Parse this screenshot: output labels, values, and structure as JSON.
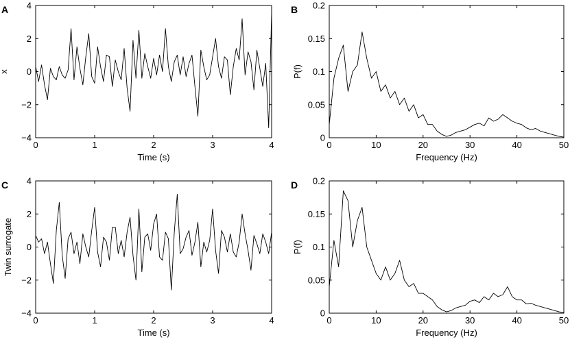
{
  "chart_data": [
    {
      "panel": "A",
      "type": "line",
      "xlabel": "Time (s)",
      "ylabel": "x",
      "xlim": [
        0,
        4
      ],
      "ylim": [
        -4,
        4
      ],
      "xticks": [
        0,
        1,
        2,
        3,
        4
      ],
      "yticks": [
        -4,
        -2,
        0,
        2,
        4
      ],
      "series": [
        {
          "color": "#000000",
          "x": [
            0,
            0.05,
            0.1,
            0.15,
            0.2,
            0.25,
            0.3,
            0.35,
            0.4,
            0.45,
            0.5,
            0.55,
            0.6,
            0.65,
            0.7,
            0.75,
            0.8,
            0.85,
            0.9,
            0.95,
            1.0,
            1.05,
            1.1,
            1.15,
            1.2,
            1.25,
            1.3,
            1.35,
            1.4,
            1.45,
            1.5,
            1.55,
            1.6,
            1.65,
            1.7,
            1.75,
            1.8,
            1.85,
            1.9,
            1.95,
            2.0,
            2.05,
            2.1,
            2.15,
            2.2,
            2.25,
            2.3,
            2.35,
            2.4,
            2.45,
            2.5,
            2.55,
            2.6,
            2.65,
            2.7,
            2.75,
            2.8,
            2.85,
            2.9,
            2.95,
            3.0,
            3.05,
            3.1,
            3.15,
            3.2,
            3.25,
            3.3,
            3.35,
            3.4,
            3.45,
            3.5,
            3.55,
            3.6,
            3.65,
            3.7,
            3.75,
            3.8,
            3.85,
            3.9,
            3.95,
            4.0
          ],
          "y": [
            0.3,
            -0.6,
            0.4,
            -0.8,
            -1.7,
            0.2,
            -0.3,
            -0.5,
            0.3,
            -0.2,
            -0.4,
            0.1,
            2.6,
            -0.5,
            1.5,
            0.2,
            -0.8,
            0.9,
            2.3,
            -0.3,
            -0.7,
            1.5,
            0.3,
            -0.6,
            1.0,
            0.9,
            -0.9,
            0.7,
            0.0,
            -0.5,
            1.4,
            -1.0,
            -2.4,
            1.9,
            -0.4,
            2.5,
            -0.4,
            1.1,
            0.3,
            -0.4,
            0.8,
            -0.2,
            1.0,
            0.0,
            2.6,
            0.3,
            -0.6,
            0.6,
            1.0,
            -0.2,
            0.9,
            -0.3,
            0.5,
            1.0,
            -0.9,
            -2.7,
            1.3,
            0.3,
            -0.5,
            -0.2,
            0.9,
            2.0,
            0.3,
            -0.4,
            0.9,
            0.7,
            -1.4,
            0.3,
            1.4,
            0.7,
            3.2,
            -0.2,
            1.2,
            0.6,
            -1.1,
            1.3,
            0.2,
            -0.9,
            0.5,
            -3.4,
            3.6
          ]
        }
      ]
    },
    {
      "panel": "B",
      "type": "line",
      "xlabel": "Frequency (Hz)",
      "ylabel": "P(f)",
      "xlim": [
        0,
        50
      ],
      "ylim": [
        0,
        0.2
      ],
      "xticks": [
        0,
        10,
        20,
        30,
        40,
        50
      ],
      "yticks": [
        0,
        0.05,
        0.1,
        0.15,
        0.2
      ],
      "series": [
        {
          "color": "#000000",
          "x": [
            0,
            1,
            2,
            3,
            4,
            5,
            6,
            7,
            8,
            9,
            10,
            11,
            12,
            13,
            14,
            15,
            16,
            17,
            18,
            19,
            20,
            21,
            22,
            23,
            24,
            25,
            26,
            27,
            28,
            29,
            30,
            31,
            32,
            33,
            34,
            35,
            36,
            37,
            38,
            39,
            40,
            41,
            42,
            43,
            44,
            45,
            46,
            47,
            48,
            49,
            50
          ],
          "y": [
            0.02,
            0.09,
            0.12,
            0.14,
            0.07,
            0.1,
            0.11,
            0.16,
            0.12,
            0.09,
            0.1,
            0.07,
            0.08,
            0.06,
            0.07,
            0.05,
            0.06,
            0.04,
            0.05,
            0.03,
            0.035,
            0.02,
            0.02,
            0.01,
            0.005,
            0.002,
            0.004,
            0.008,
            0.01,
            0.012,
            0.016,
            0.02,
            0.022,
            0.018,
            0.03,
            0.025,
            0.028,
            0.035,
            0.03,
            0.025,
            0.022,
            0.02,
            0.015,
            0.012,
            0.014,
            0.01,
            0.008,
            0.006,
            0.004,
            0.002,
            0.001
          ]
        }
      ]
    },
    {
      "panel": "C",
      "type": "line",
      "xlabel": "Time (s)",
      "ylabel": "Twin surrogate",
      "xlim": [
        0,
        4
      ],
      "ylim": [
        -4,
        4
      ],
      "xticks": [
        0,
        1,
        2,
        3,
        4
      ],
      "yticks": [
        -4,
        -2,
        0,
        2,
        4
      ],
      "series": [
        {
          "color": "#000000",
          "x": [
            0,
            0.05,
            0.1,
            0.15,
            0.2,
            0.25,
            0.3,
            0.35,
            0.4,
            0.45,
            0.5,
            0.55,
            0.6,
            0.65,
            0.7,
            0.75,
            0.8,
            0.85,
            0.9,
            0.95,
            1.0,
            1.05,
            1.1,
            1.15,
            1.2,
            1.25,
            1.3,
            1.35,
            1.4,
            1.45,
            1.5,
            1.55,
            1.6,
            1.65,
            1.7,
            1.75,
            1.8,
            1.85,
            1.9,
            1.95,
            2.0,
            2.05,
            2.1,
            2.15,
            2.2,
            2.25,
            2.3,
            2.35,
            2.4,
            2.45,
            2.5,
            2.55,
            2.6,
            2.65,
            2.7,
            2.75,
            2.8,
            2.85,
            2.9,
            2.95,
            3.0,
            3.05,
            3.1,
            3.15,
            3.2,
            3.25,
            3.3,
            3.35,
            3.4,
            3.45,
            3.5,
            3.55,
            3.6,
            3.65,
            3.7,
            3.75,
            3.8,
            3.85,
            3.9,
            3.95,
            4.0
          ],
          "y": [
            0.7,
            0.3,
            0.5,
            -0.4,
            0.3,
            -1.0,
            -2.2,
            1.0,
            2.7,
            -0.5,
            -1.9,
            0.5,
            0.9,
            -0.4,
            0.3,
            -1.0,
            0.8,
            0.0,
            -0.6,
            1.0,
            2.4,
            -0.3,
            -1.2,
            0.6,
            0.3,
            -0.8,
            1.2,
            1.2,
            -0.4,
            0.4,
            -0.6,
            0.9,
            1.8,
            -0.5,
            -2.0,
            2.3,
            -1.5,
            0.6,
            0.8,
            -0.2,
            1.4,
            2.0,
            -0.6,
            -0.8,
            0.9,
            0.5,
            -2.6,
            0.9,
            3.2,
            -0.4,
            -0.1,
            0.6,
            1.0,
            -0.5,
            0.3,
            1.5,
            -1.2,
            0.3,
            -0.3,
            0.4,
            2.3,
            -0.2,
            -1.6,
            1.0,
            0.6,
            -0.3,
            0.8,
            -0.3,
            -0.6,
            0.3,
            2.0,
            0.8,
            -0.2,
            -1.4,
            0.7,
            0.2,
            -0.4,
            0.8,
            0.3,
            -0.4,
            0.9
          ]
        }
      ]
    },
    {
      "panel": "D",
      "type": "line",
      "xlabel": "Frequency (Hz)",
      "ylabel": "P(f)",
      "xlim": [
        0,
        50
      ],
      "ylim": [
        0,
        0.2
      ],
      "xticks": [
        0,
        10,
        20,
        30,
        40,
        50
      ],
      "yticks": [
        0,
        0.05,
        0.1,
        0.15,
        0.2
      ],
      "series": [
        {
          "color": "#000000",
          "x": [
            0,
            1,
            2,
            3,
            4,
            5,
            6,
            7,
            8,
            9,
            10,
            11,
            12,
            13,
            14,
            15,
            16,
            17,
            18,
            19,
            20,
            21,
            22,
            23,
            24,
            25,
            26,
            27,
            28,
            29,
            30,
            31,
            32,
            33,
            34,
            35,
            36,
            37,
            38,
            39,
            40,
            41,
            42,
            43,
            44,
            45,
            46,
            47,
            48,
            49,
            50
          ],
          "y": [
            0.04,
            0.11,
            0.07,
            0.185,
            0.17,
            0.1,
            0.14,
            0.16,
            0.1,
            0.08,
            0.06,
            0.05,
            0.07,
            0.05,
            0.06,
            0.08,
            0.05,
            0.04,
            0.045,
            0.03,
            0.03,
            0.025,
            0.02,
            0.01,
            0.005,
            0.002,
            0.004,
            0.008,
            0.01,
            0.012,
            0.018,
            0.02,
            0.016,
            0.025,
            0.02,
            0.03,
            0.025,
            0.028,
            0.04,
            0.025,
            0.02,
            0.02,
            0.014,
            0.015,
            0.012,
            0.01,
            0.008,
            0.006,
            0.004,
            0.002,
            0.001
          ]
        }
      ]
    }
  ]
}
